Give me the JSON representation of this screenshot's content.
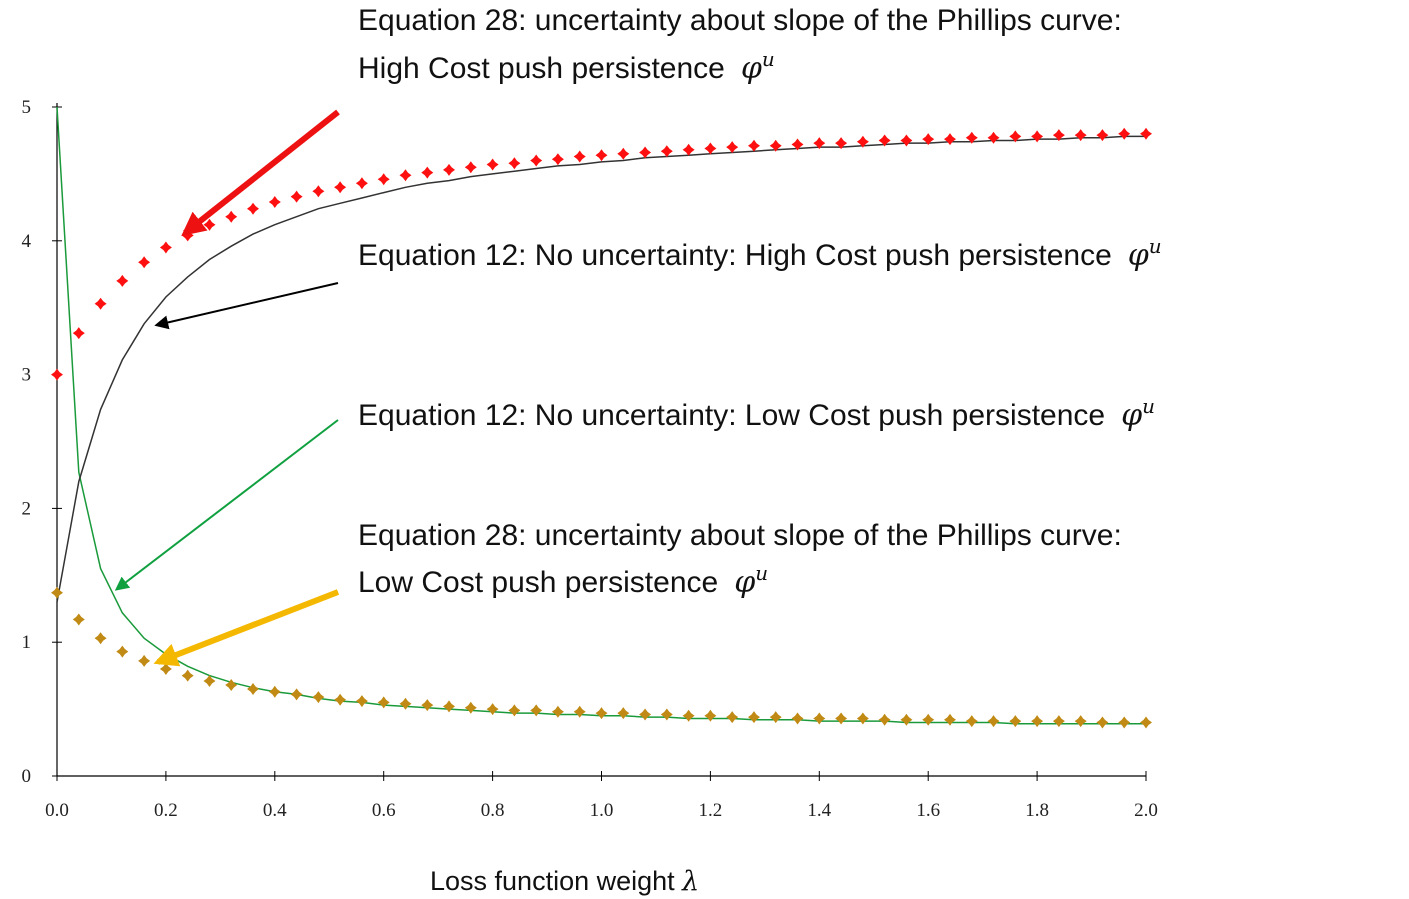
{
  "chart_data": {
    "type": "line",
    "x": [
      0,
      0.04,
      0.08,
      0.12,
      0.16,
      0.2,
      0.24,
      0.28,
      0.32,
      0.36,
      0.4,
      0.44,
      0.48,
      0.52,
      0.56,
      0.6,
      0.64,
      0.68,
      0.72,
      0.76,
      0.8,
      0.84,
      0.88,
      0.92,
      0.96,
      1.0,
      1.04,
      1.08,
      1.12,
      1.16,
      1.2,
      1.24,
      1.28,
      1.32,
      1.36,
      1.4,
      1.44,
      1.48,
      1.52,
      1.56,
      1.6,
      1.64,
      1.68,
      1.72,
      1.76,
      1.8,
      1.84,
      1.88,
      1.92,
      1.96,
      2.0
    ],
    "series": [
      {
        "color": "#1a9a3a",
        "marker": false,
        "values": [
          5.0,
          2.27,
          1.55,
          1.22,
          1.03,
          0.91,
          0.82,
          0.75,
          0.7,
          0.66,
          0.63,
          0.61,
          0.58,
          0.56,
          0.55,
          0.53,
          0.52,
          0.51,
          0.5,
          0.49,
          0.48,
          0.47,
          0.47,
          0.46,
          0.46,
          0.45,
          0.45,
          0.44,
          0.44,
          0.43,
          0.43,
          0.43,
          0.42,
          0.42,
          0.42,
          0.41,
          0.41,
          0.41,
          0.41,
          0.4,
          0.4,
          0.4,
          0.4,
          0.4,
          0.39,
          0.39,
          0.39,
          0.39,
          0.39,
          0.39,
          0.39
        ]
      },
      {
        "color": "#333333",
        "marker": false,
        "values": [
          1.3,
          2.2,
          2.74,
          3.11,
          3.38,
          3.58,
          3.73,
          3.86,
          3.96,
          4.05,
          4.12,
          4.18,
          4.24,
          4.28,
          4.32,
          4.36,
          4.4,
          4.43,
          4.45,
          4.48,
          4.5,
          4.52,
          4.54,
          4.56,
          4.57,
          4.59,
          4.6,
          4.62,
          4.63,
          4.64,
          4.65,
          4.66,
          4.67,
          4.68,
          4.69,
          4.7,
          4.7,
          4.71,
          4.72,
          4.73,
          4.73,
          4.74,
          4.74,
          4.75,
          4.75,
          4.76,
          4.76,
          4.77,
          4.77,
          4.78,
          4.78
        ]
      },
      {
        "color": "#ff1010",
        "marker": true,
        "values": [
          3.0,
          3.31,
          3.53,
          3.7,
          3.84,
          3.95,
          4.04,
          4.12,
          4.18,
          4.24,
          4.29,
          4.33,
          4.37,
          4.4,
          4.43,
          4.46,
          4.49,
          4.51,
          4.53,
          4.55,
          4.57,
          4.58,
          4.6,
          4.61,
          4.63,
          4.64,
          4.65,
          4.66,
          4.67,
          4.68,
          4.69,
          4.7,
          4.71,
          4.71,
          4.72,
          4.73,
          4.73,
          4.74,
          4.75,
          4.75,
          4.76,
          4.76,
          4.77,
          4.77,
          4.78,
          4.78,
          4.79,
          4.79,
          4.79,
          4.8,
          4.8
        ]
      },
      {
        "color": "#c08a14",
        "marker": true,
        "values": [
          1.37,
          1.17,
          1.03,
          0.93,
          0.86,
          0.8,
          0.75,
          0.71,
          0.68,
          0.65,
          0.63,
          0.61,
          0.59,
          0.57,
          0.56,
          0.55,
          0.54,
          0.53,
          0.52,
          0.51,
          0.5,
          0.49,
          0.49,
          0.48,
          0.48,
          0.47,
          0.47,
          0.46,
          0.46,
          0.45,
          0.45,
          0.44,
          0.44,
          0.44,
          0.43,
          0.43,
          0.43,
          0.43,
          0.42,
          0.42,
          0.42,
          0.42,
          0.41,
          0.41,
          0.41,
          0.41,
          0.41,
          0.41,
          0.4,
          0.4,
          0.4
        ]
      }
    ],
    "xlim": [
      0,
      2
    ],
    "xticks": [
      {
        "value": 0,
        "label": "0.0"
      },
      0.2,
      0.4,
      0.6,
      0.8,
      {
        "value": 1,
        "label": "1.0"
      },
      1.2,
      1.4,
      1.6,
      1.8,
      {
        "value": 2,
        "label": "2.0"
      }
    ],
    "ylim": [
      0,
      5
    ],
    "yticks": [
      0,
      1,
      2,
      3,
      4,
      5
    ],
    "xlabel": "Loss function weight",
    "xlabel_symbol": "λ",
    "annotations": [
      {
        "lines": [
          "Equation 28: uncertainty about slope of the Phillips curve:",
          "High Cost push persistence"
        ],
        "symbol": "φ",
        "superscript": "u"
      },
      {
        "lines": [
          "Equation 12: No uncertainty: High Cost push persistence"
        ],
        "symbol": "φ",
        "superscript": "u"
      },
      {
        "lines": [
          "Equation 12: No uncertainty: Low Cost push persistence"
        ],
        "symbol": "φ",
        "superscript": "u"
      },
      {
        "lines": [
          "Equation 28: uncertainty about slope of the Phillips curve:",
          "Low Cost push persistence"
        ],
        "symbol": "φ",
        "superscript": "u"
      }
    ]
  }
}
